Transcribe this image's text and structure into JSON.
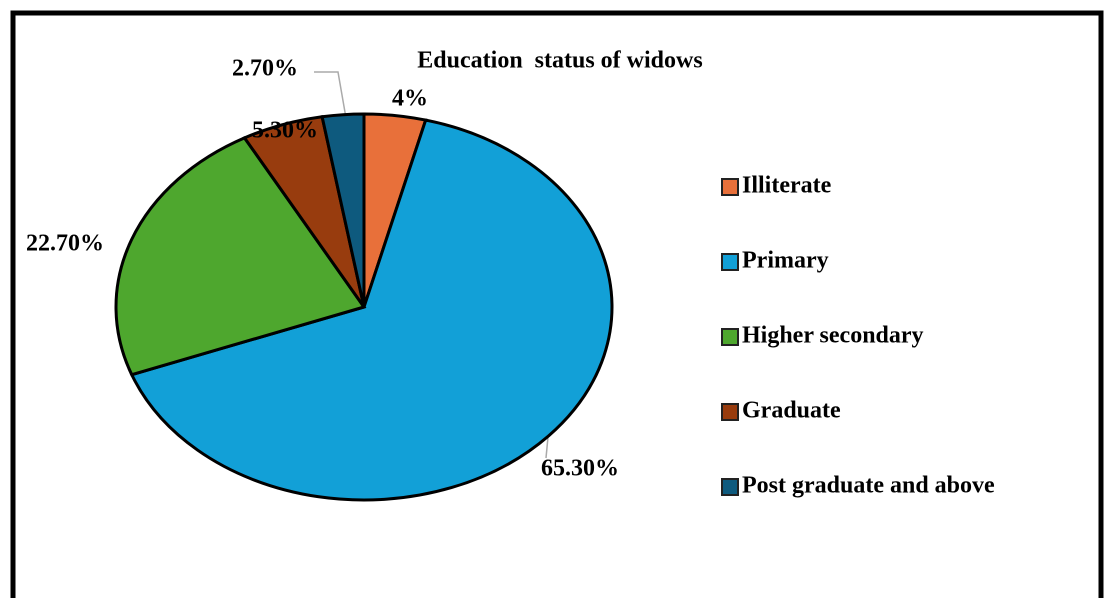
{
  "chart_data": {
    "type": "pie",
    "title": "Education  status of widows",
    "categories": [
      "Illiterate",
      "Primary",
      "Higher secondary",
      "Graduate",
      "Post graduate and above"
    ],
    "values": [
      4,
      65.3,
      22.7,
      5.3,
      2.7
    ],
    "value_labels": [
      "4%",
      "65.30%",
      "22.70%",
      "5.30%",
      "2.70%"
    ],
    "colors": [
      "#e8703a",
      "#12a0d7",
      "#4ea72e",
      "#983c0e",
      "#0e5a7e"
    ],
    "legend": "right"
  }
}
